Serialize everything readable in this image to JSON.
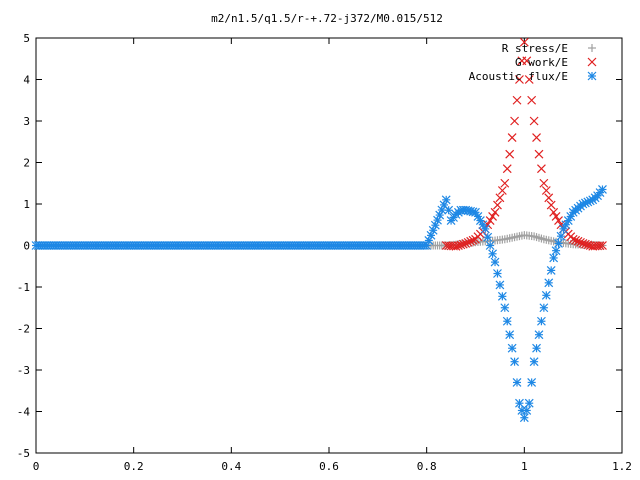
{
  "chart_data": {
    "type": "scatter",
    "title": "m2/n1.5/q1.5/r-+.72-j372/M0.015/512",
    "xlabel": "",
    "ylabel": "",
    "xlim": [
      0,
      1.2
    ],
    "ylim": [
      -5,
      5
    ],
    "xticks": [
      "0",
      "0.2",
      "0.4",
      "0.6",
      "0.8",
      "1",
      "1.2"
    ],
    "yticks": [
      "5",
      "4",
      "3",
      "2",
      "1",
      "0",
      "-1",
      "-2",
      "-3",
      "-4",
      "-5"
    ],
    "grid": false,
    "legend_position": "top-right",
    "series": [
      {
        "name": "R stress/E",
        "marker": "plus",
        "color": "#a0a0a0",
        "x": [
          0.0,
          0.1,
          0.2,
          0.3,
          0.4,
          0.5,
          0.6,
          0.7,
          0.8,
          0.84,
          0.86,
          0.88,
          0.9,
          0.92,
          0.94,
          0.96,
          0.98,
          1.0,
          1.02,
          1.04,
          1.06,
          1.08,
          1.1,
          1.12,
          1.14,
          1.16
        ],
        "y": [
          0,
          0,
          0,
          0,
          0,
          0,
          0,
          0,
          0,
          0.0,
          0.02,
          0.05,
          0.08,
          0.1,
          0.12,
          0.15,
          0.2,
          0.25,
          0.22,
          0.15,
          0.1,
          0.06,
          0.03,
          0.02,
          0.01,
          0.0
        ]
      },
      {
        "name": "G work/E",
        "marker": "cross",
        "color": "#e02020",
        "x": [
          0.84,
          0.86,
          0.88,
          0.9,
          0.92,
          0.94,
          0.96,
          0.97,
          0.98,
          0.99,
          1.0,
          1.01,
          1.02,
          1.03,
          1.04,
          1.06,
          1.08,
          1.1,
          1.12,
          1.14,
          1.16
        ],
        "y": [
          0.0,
          -0.02,
          0.05,
          0.15,
          0.4,
          0.8,
          1.5,
          2.2,
          3.0,
          4.0,
          4.9,
          4.0,
          3.0,
          2.2,
          1.5,
          0.8,
          0.4,
          0.15,
          0.05,
          -0.02,
          0.0
        ]
      },
      {
        "name": "Acoustic flux/E",
        "marker": "star",
        "color": "#1e88e5",
        "x": [
          0.0,
          0.1,
          0.2,
          0.3,
          0.4,
          0.5,
          0.6,
          0.7,
          0.8,
          0.84,
          0.85,
          0.86,
          0.87,
          0.88,
          0.9,
          0.92,
          0.94,
          0.96,
          0.98,
          0.99,
          1.0,
          1.01,
          1.02,
          1.04,
          1.06,
          1.08,
          1.1,
          1.12,
          1.14,
          1.15,
          1.16
        ],
        "y": [
          0,
          0,
          0,
          0,
          0,
          0,
          0,
          0,
          0,
          1.1,
          0.6,
          0.75,
          0.85,
          0.85,
          0.8,
          0.4,
          -0.4,
          -1.5,
          -2.8,
          -3.8,
          -4.15,
          -3.8,
          -2.8,
          -1.5,
          -0.3,
          0.4,
          0.8,
          1.0,
          1.1,
          1.2,
          1.35
        ]
      }
    ]
  }
}
